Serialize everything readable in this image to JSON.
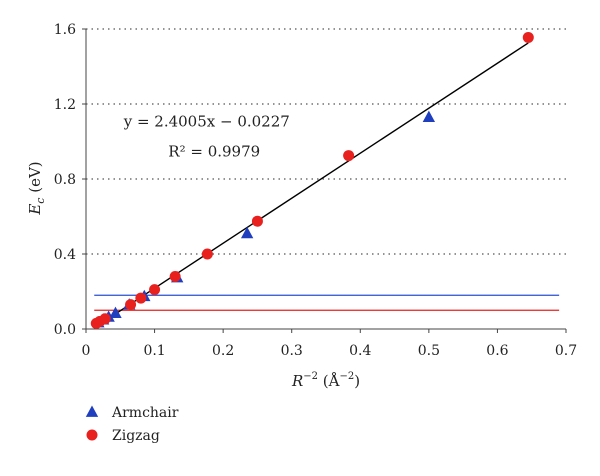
{
  "chart_data": {
    "type": "scatter",
    "xlim": [
      0,
      0.7
    ],
    "ylim": [
      0,
      1.6
    ],
    "xticks": [
      "0",
      "0.1",
      "0.2",
      "0.3",
      "0.4",
      "0.5",
      "0.6",
      "0.7"
    ],
    "yticks": [
      "0.0",
      "0.4",
      "0.8",
      "1.2",
      "1.6"
    ],
    "grid": "horizontal dotted",
    "legend_position": "bottom-left",
    "series": [
      {
        "name": "Armchair",
        "marker": "triangle",
        "color": "#1f3fbf",
        "x": [
          0.018,
          0.025,
          0.033,
          0.043,
          0.063,
          0.085,
          0.133,
          0.235,
          0.5
        ],
        "y": [
          0.035,
          0.05,
          0.065,
          0.085,
          0.13,
          0.175,
          0.275,
          0.51,
          1.13
        ]
      },
      {
        "name": "Zigzag",
        "marker": "circle",
        "color": "#e8201e",
        "x": [
          0.015,
          0.02,
          0.028,
          0.065,
          0.08,
          0.1,
          0.13,
          0.177,
          0.25,
          0.383,
          0.645
        ],
        "y": [
          0.03,
          0.04,
          0.055,
          0.13,
          0.165,
          0.21,
          0.28,
          0.4,
          0.575,
          0.925,
          1.555
        ]
      }
    ],
    "fit_line": {
      "slope": 2.4005,
      "intercept": -0.0227,
      "x_range": [
        0.012,
        0.645
      ],
      "color": "#000000"
    },
    "reference_lines": [
      {
        "y": 0.18,
        "x_range": [
          0.012,
          0.69
        ],
        "color": "#2a4fd0"
      },
      {
        "y": 0.1,
        "x_range": [
          0.012,
          0.69
        ],
        "color": "#e8201e"
      }
    ],
    "annotations": [
      {
        "text": "y = 2.4005x − 0.0227",
        "x": 0.055,
        "y": 1.08
      },
      {
        "text": "R² = 0.9979",
        "x": 0.12,
        "y": 0.92
      }
    ]
  }
}
